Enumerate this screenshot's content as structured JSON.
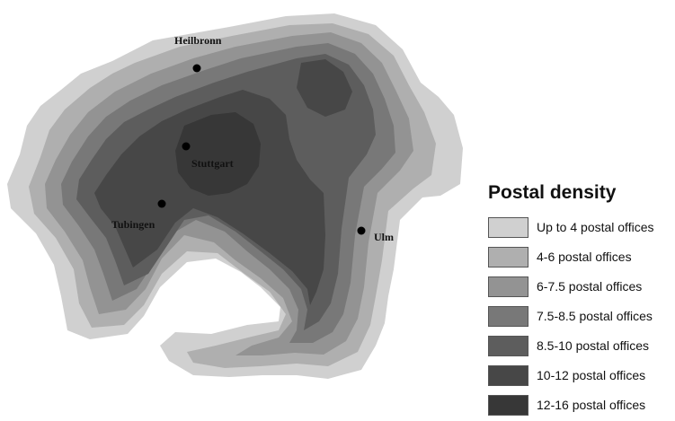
{
  "legend": {
    "title": "Postal density",
    "items": [
      {
        "label": "Up to 4 postal offices",
        "color": "#d0d0d0"
      },
      {
        "label": "4-6 postal offices",
        "color": "#afafaf"
      },
      {
        "label": "6-7.5 postal offices",
        "color": "#939393"
      },
      {
        "label": "7.5-8.5 postal offices",
        "color": "#787878"
      },
      {
        "label": "8.5-10 postal offices",
        "color": "#5d5d5d"
      },
      {
        "label": "10-12 postal offices",
        "color": "#474747"
      },
      {
        "label": "12-16 postal offices",
        "color": "#373737"
      }
    ]
  },
  "cities": [
    {
      "name": "Heilbronn"
    },
    {
      "name": "Stuttgart"
    },
    {
      "name": "Tubingen"
    },
    {
      "name": "Ulm"
    }
  ]
}
